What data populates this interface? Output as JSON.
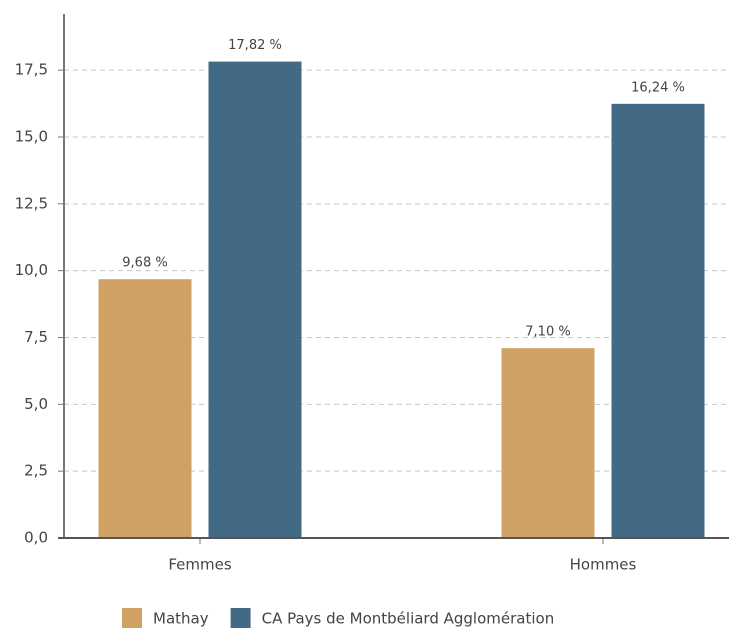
{
  "chart_data": {
    "type": "bar",
    "categories": [
      "Femmes",
      "Hommes"
    ],
    "series": [
      {
        "name": "Mathay",
        "color": "#cfa164",
        "values": [
          9.68,
          7.1
        ],
        "value_labels": [
          "9,68 %",
          "7,10 %"
        ]
      },
      {
        "name": "CA Pays de Montbéliard Agglomération",
        "color": "#426a85",
        "values": [
          17.82,
          16.24
        ],
        "value_labels": [
          "17,82 %",
          "16,24 %"
        ]
      }
    ],
    "ylim": [
      0,
      19.6
    ],
    "yticks": [
      {
        "value": 0,
        "label": "0,0"
      },
      {
        "value": 2.5,
        "label": "2,5"
      },
      {
        "value": 5,
        "label": "5,0"
      },
      {
        "value": 7.5,
        "label": "7,5"
      },
      {
        "value": 10,
        "label": "10,0"
      },
      {
        "value": 12.5,
        "label": "12,5"
      },
      {
        "value": 15,
        "label": "15,0"
      },
      {
        "value": 17.5,
        "label": "17,5"
      }
    ],
    "grid": true
  }
}
